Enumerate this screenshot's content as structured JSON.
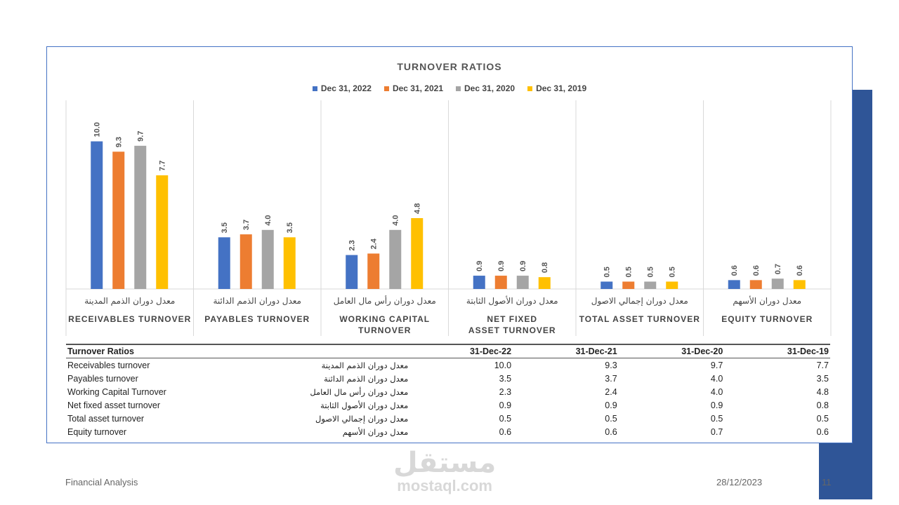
{
  "colors": {
    "s2022": "#4472c4",
    "s2021": "#ed7d31",
    "s2020": "#a5a5a5",
    "s2019": "#ffc000",
    "frame": "#4472c4",
    "deco": "#2f5597"
  },
  "chart_data": {
    "type": "bar",
    "title": "TURNOVER RATIOS",
    "legend_position": "top",
    "grid": false,
    "ylim": [
      0,
      11
    ],
    "categories": [
      {
        "ar": "معدل دوران الذمم المدينة",
        "en": "RECEIVABLES TURNOVER"
      },
      {
        "ar": "معدل دوران الذمم الدائنة",
        "en": "PAYABLES TURNOVER"
      },
      {
        "ar": "معدل دوران رأس مال العامل",
        "en": "WORKING CAPITAL TURNOVER"
      },
      {
        "ar": "معدل دوران الأصول الثابتة",
        "en": "NET FIXED ASSET TURNOVER"
      },
      {
        "ar": "معدل دوران إجمالي الاصول",
        "en": "TOTAL ASSET TURNOVER"
      },
      {
        "ar": "معدل دوران الأسهم",
        "en": "EQUITY TURNOVER"
      }
    ],
    "series": [
      {
        "name": "Dec 31, 2022",
        "color": "#4472c4",
        "values": [
          10.0,
          3.5,
          2.3,
          0.9,
          0.5,
          0.6
        ]
      },
      {
        "name": "Dec 31, 2021",
        "color": "#ed7d31",
        "values": [
          9.3,
          3.7,
          2.4,
          0.9,
          0.5,
          0.6
        ]
      },
      {
        "name": "Dec 31, 2020",
        "color": "#a5a5a5",
        "values": [
          9.7,
          4.0,
          4.0,
          0.9,
          0.5,
          0.7
        ]
      },
      {
        "name": "Dec 31, 2019",
        "color": "#ffc000",
        "values": [
          7.7,
          3.5,
          4.8,
          0.8,
          0.5,
          0.6
        ]
      }
    ]
  },
  "table": {
    "header": [
      "Turnover Ratios",
      "",
      "31-Dec-22",
      "31-Dec-21",
      "31-Dec-20",
      "31-Dec-19"
    ],
    "rows": [
      [
        "Receivables turnover",
        "معدل دوران الذمم المدينة",
        "10.0",
        "9.3",
        "9.7",
        "7.7"
      ],
      [
        "Payables turnover",
        "معدل دوران الذمم الدائنة",
        "3.5",
        "3.7",
        "4.0",
        "3.5"
      ],
      [
        "Working Capital Turnover",
        "معدل دوران رأس مال العامل",
        "2.3",
        "2.4",
        "4.0",
        "4.8"
      ],
      [
        "Net fixed asset turnover",
        "معدل دوران الأصول الثابتة",
        "0.9",
        "0.9",
        "0.9",
        "0.8"
      ],
      [
        "Total asset turnover",
        "معدل دوران إجمالي الاصول",
        "0.5",
        "0.5",
        "0.5",
        "0.5"
      ],
      [
        "Equity turnover",
        "معدل دوران الأسهم",
        "0.6",
        "0.6",
        "0.7",
        "0.6"
      ]
    ]
  },
  "footer": {
    "left": "Financial Analysis",
    "date": "28/12/2023",
    "page": "11"
  },
  "watermark": {
    "ar": "مستقل",
    "en": "mostaql.com"
  }
}
